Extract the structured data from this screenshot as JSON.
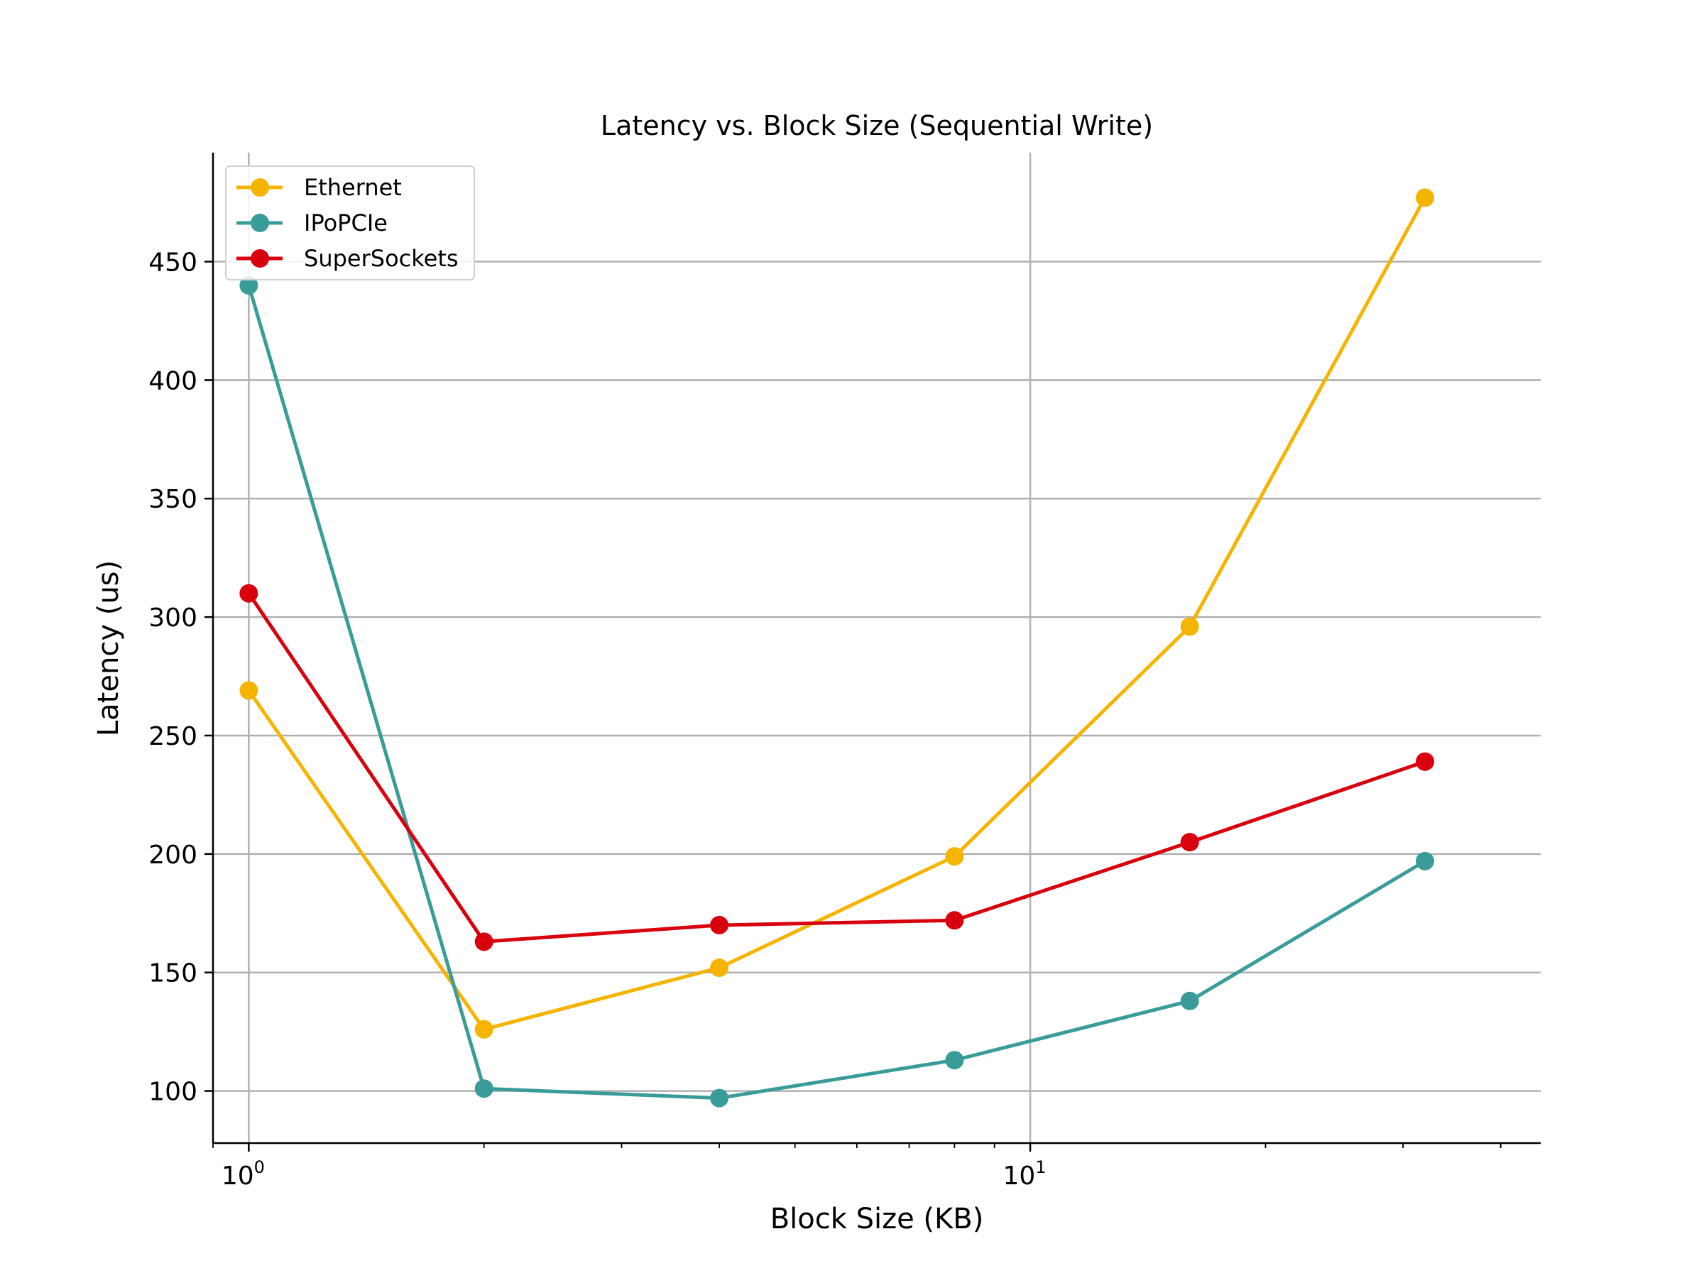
{
  "chart_data": {
    "type": "line",
    "title": "Latency vs. Block Size (Sequential Write)",
    "xlabel": "Block Size (KB)",
    "ylabel": "Latency (us)",
    "x_scale": "log",
    "x": [
      1,
      2,
      4,
      8,
      16,
      32
    ],
    "xlim": [
      0.9,
      45
    ],
    "ylim": [
      78,
      496
    ],
    "xticks": [
      {
        "value": 1,
        "base": "10",
        "exp": "0"
      },
      {
        "value": 10,
        "base": "10",
        "exp": "1"
      }
    ],
    "yticks": [
      100,
      150,
      200,
      250,
      300,
      350,
      400,
      450
    ],
    "grid": true,
    "legend_position": "top-left",
    "series": [
      {
        "name": "Ethernet",
        "color": "#F5B400",
        "values": [
          269,
          126,
          152,
          199,
          296,
          477
        ]
      },
      {
        "name": "IPoPCIe",
        "color": "#3A9C99",
        "values": [
          440,
          101,
          97,
          113,
          138,
          197
        ]
      },
      {
        "name": "SuperSockets",
        "color": "#D9000D",
        "values": [
          310,
          163,
          170,
          172,
          205,
          239
        ]
      }
    ]
  }
}
